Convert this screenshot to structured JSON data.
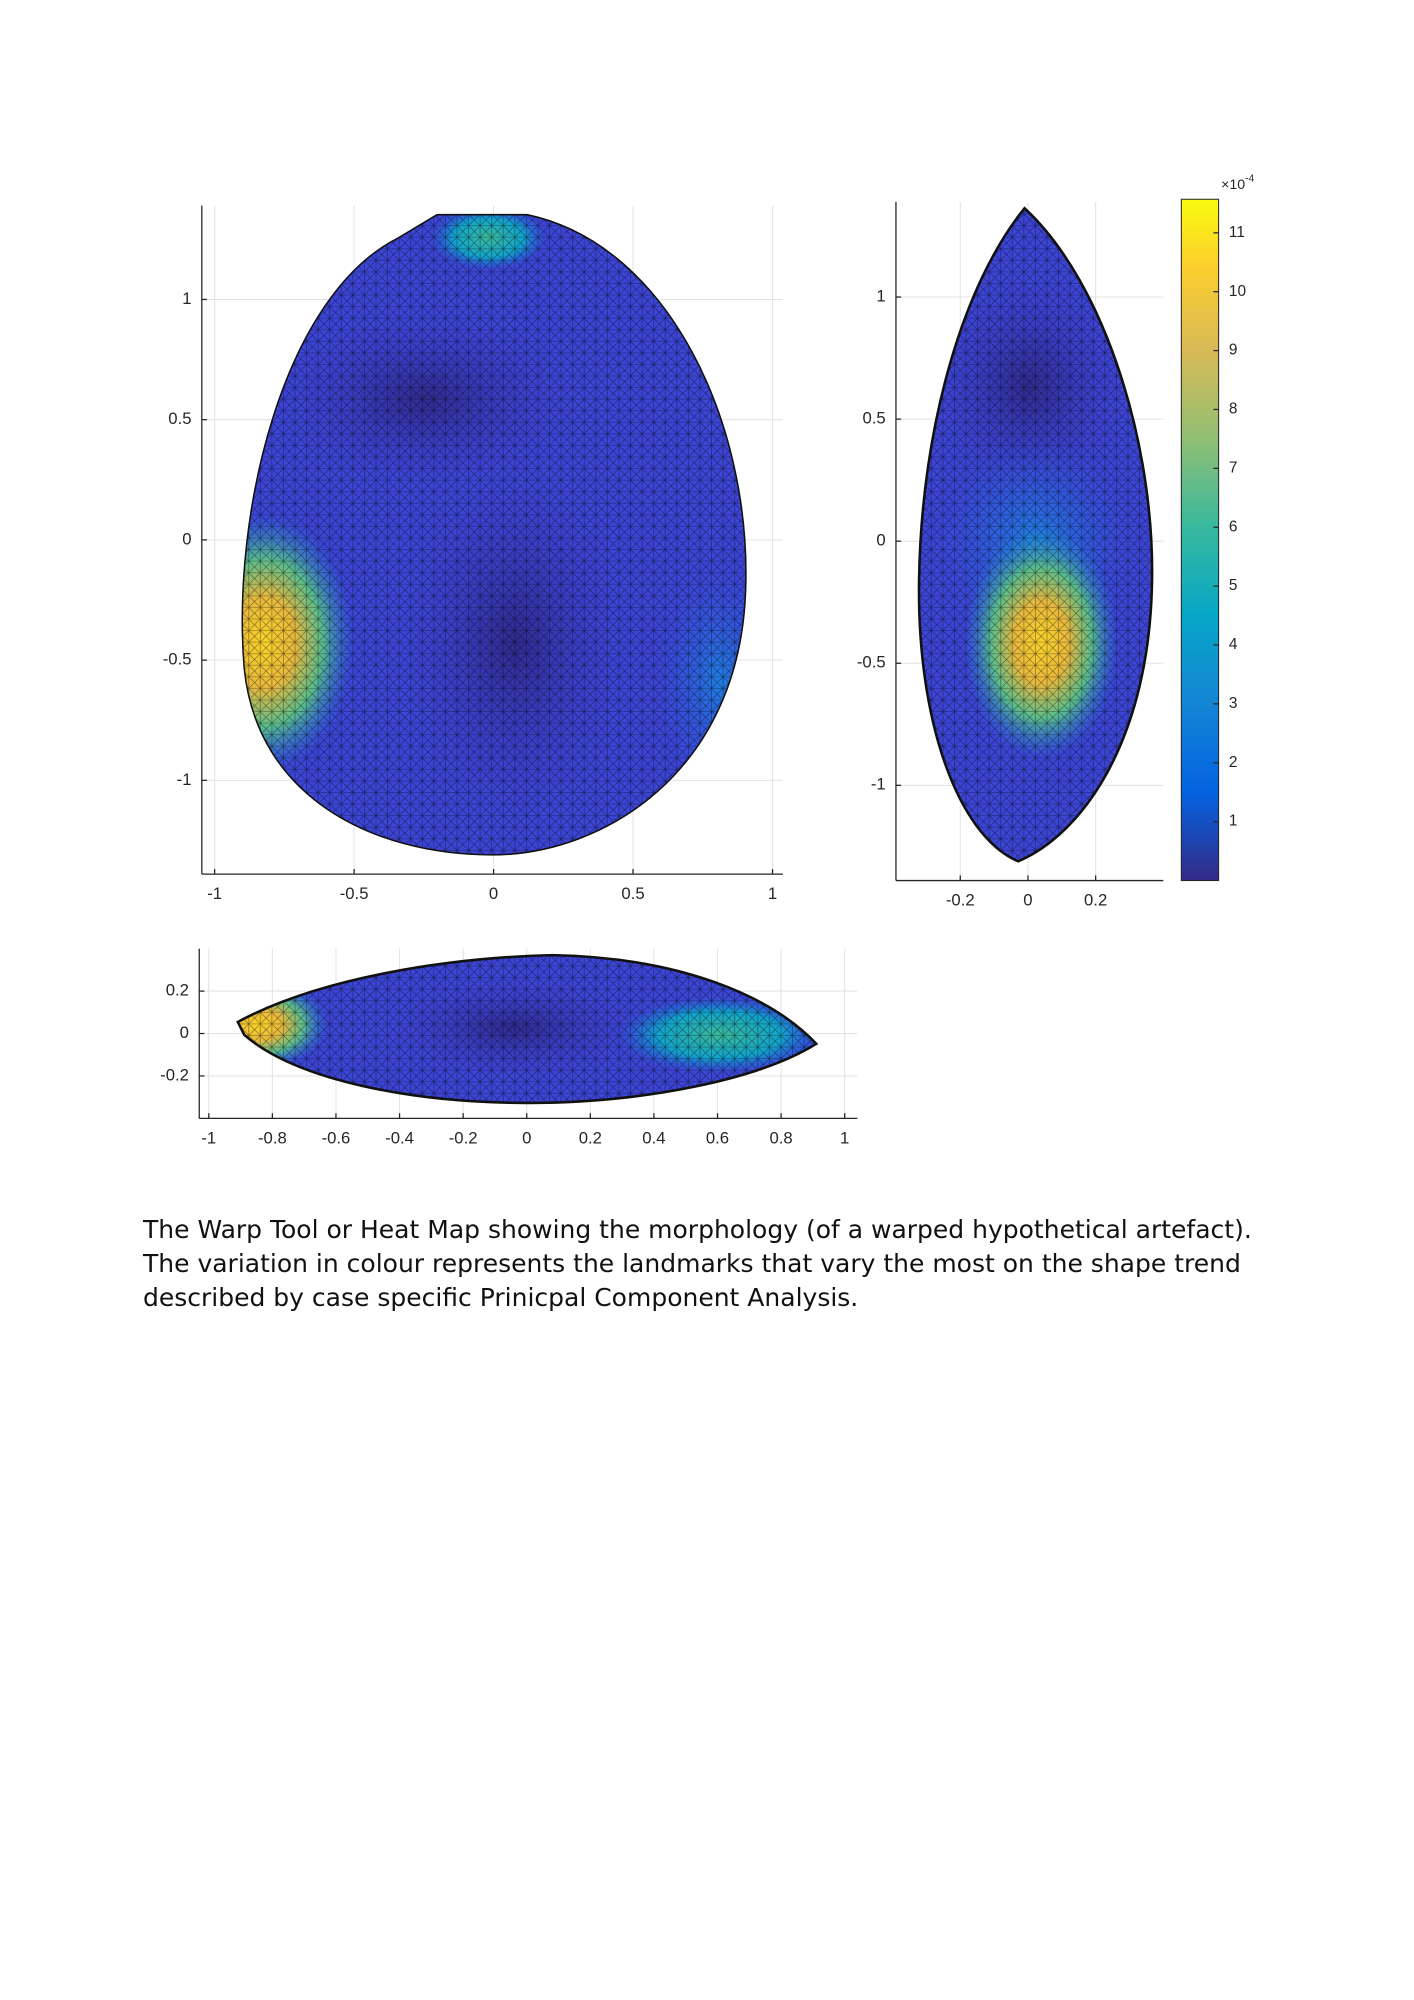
{
  "figure": {
    "panels": [
      {
        "xlim": [
          -1.046,
          1.037
        ],
        "ylim": [
          -1.39,
          1.39
        ],
        "xticks": [
          -1,
          -0.5,
          0,
          0.5,
          1
        ],
        "yticks": [
          -1,
          -0.5,
          0,
          0.5,
          1
        ]
      },
      {
        "xlim": [
          -0.39,
          0.4
        ],
        "ylim": [
          -1.39,
          1.39
        ],
        "xticks": [
          -0.2,
          0,
          0.2
        ],
        "yticks": [
          -1,
          -0.5,
          0,
          0.5,
          1
        ]
      },
      {
        "xlim": [
          -1.03,
          1.04
        ],
        "ylim": [
          -0.4,
          0.4
        ],
        "xticks": [
          -1,
          -0.8,
          -0.6,
          -0.4,
          -0.2,
          0,
          0.2,
          0.4,
          0.6,
          0.8,
          1
        ],
        "yticks": [
          -0.2,
          0,
          0.2
        ]
      }
    ],
    "colorbar": {
      "lim": [
        0,
        11.57
      ],
      "ticks": [
        1,
        2,
        3,
        4,
        5,
        6,
        7,
        8,
        9,
        10,
        11
      ],
      "multiplier": "×10",
      "exponent": "-4"
    }
  },
  "caption": [
    "The Warp Tool or Heat Map showing the morphology (of a warped hypothetical artefact).",
    "The variation in colour represents the landmarks that vary the most on the shape trend",
    "described by case specific Prinicpal Component Analysis."
  ]
}
